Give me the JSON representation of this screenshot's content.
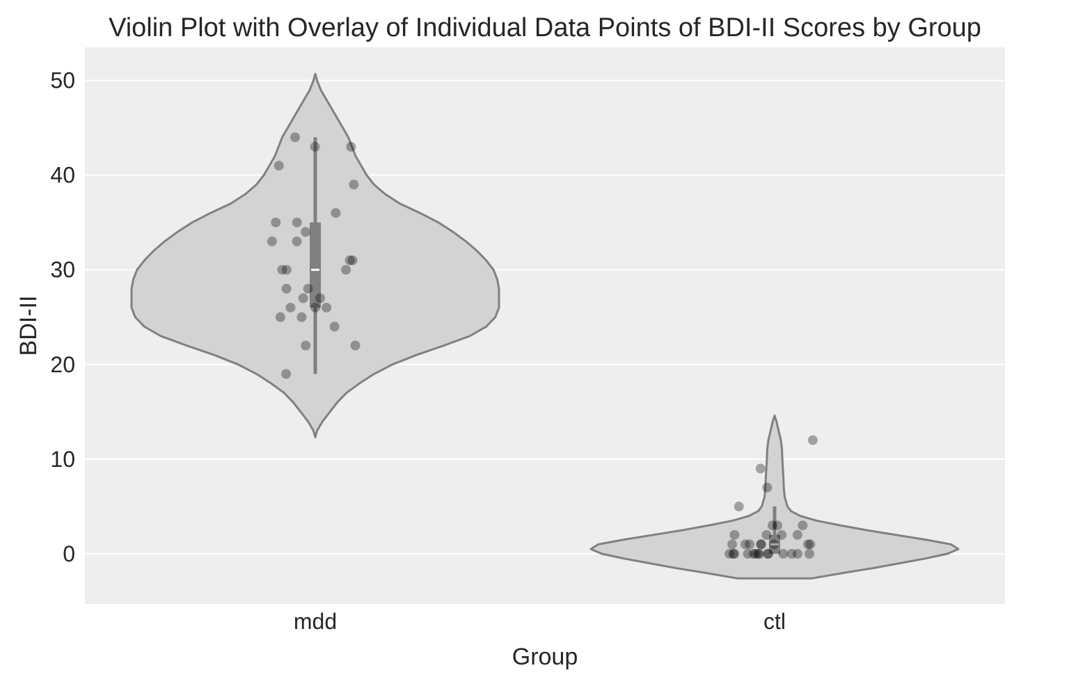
{
  "chart_data": {
    "type": "violin",
    "title": "Violin Plot with Overlay of Individual Data Points of BDI-II Scores by Group",
    "xlabel": "Group",
    "ylabel": "BDI-II",
    "ylim": [
      -5.3,
      53.5
    ],
    "yticks": [
      0,
      10,
      20,
      30,
      40,
      50
    ],
    "grid": true,
    "categories": [
      "mdd",
      "ctl"
    ],
    "groups": [
      {
        "name": "mdd",
        "min": 19,
        "q1": 26,
        "median": 30,
        "q3": 35,
        "max": 44,
        "kde_range": [
          12.3,
          50.7
        ],
        "density": [
          [
            12.3,
            0.0
          ],
          [
            13,
            0.01
          ],
          [
            14,
            0.04
          ],
          [
            15,
            0.08
          ],
          [
            16,
            0.12
          ],
          [
            17,
            0.17
          ],
          [
            18,
            0.24
          ],
          [
            19,
            0.32
          ],
          [
            20,
            0.42
          ],
          [
            21,
            0.55
          ],
          [
            22,
            0.7
          ],
          [
            23,
            0.84
          ],
          [
            24,
            0.93
          ],
          [
            25,
            0.98
          ],
          [
            26,
            1.0
          ],
          [
            27,
            1.0
          ],
          [
            28,
            1.0
          ],
          [
            29,
            0.99
          ],
          [
            30,
            0.97
          ],
          [
            31,
            0.93
          ],
          [
            32,
            0.88
          ],
          [
            33,
            0.82
          ],
          [
            34,
            0.75
          ],
          [
            35,
            0.67
          ],
          [
            36,
            0.57
          ],
          [
            37,
            0.46
          ],
          [
            38,
            0.38
          ],
          [
            39,
            0.32
          ],
          [
            40,
            0.28
          ],
          [
            41,
            0.25
          ],
          [
            42,
            0.22
          ],
          [
            43,
            0.2
          ],
          [
            44,
            0.18
          ],
          [
            45,
            0.15
          ],
          [
            46,
            0.12
          ],
          [
            47,
            0.09
          ],
          [
            48,
            0.06
          ],
          [
            49,
            0.03
          ],
          [
            50,
            0.01
          ],
          [
            50.7,
            0.0
          ]
        ],
        "points": [
          43,
          39,
          35,
          34,
          31,
          30,
          27,
          26,
          26,
          26,
          25,
          22,
          22,
          19,
          43,
          44,
          41,
          36,
          35,
          33,
          33,
          31,
          30,
          30,
          28,
          28,
          27,
          25,
          24
        ]
      },
      {
        "name": "ctl",
        "min": 0,
        "q1": 0,
        "median": 1,
        "q3": 2,
        "max": 5,
        "kde_range": [
          -2.6,
          14.6
        ],
        "density": [
          [
            -2.6,
            0.2
          ],
          [
            -2,
            0.38
          ],
          [
            -1.5,
            0.54
          ],
          [
            -1,
            0.68
          ],
          [
            -0.5,
            0.82
          ],
          [
            0,
            0.94
          ],
          [
            0.5,
            1.0
          ],
          [
            1,
            0.96
          ],
          [
            1.5,
            0.82
          ],
          [
            2,
            0.66
          ],
          [
            2.5,
            0.5
          ],
          [
            3,
            0.36
          ],
          [
            3.5,
            0.23
          ],
          [
            4,
            0.14
          ],
          [
            4.5,
            0.09
          ],
          [
            5,
            0.07
          ],
          [
            6,
            0.055
          ],
          [
            7,
            0.05
          ],
          [
            8,
            0.048
          ],
          [
            9,
            0.045
          ],
          [
            10,
            0.042
          ],
          [
            11,
            0.04
          ],
          [
            12,
            0.034
          ],
          [
            13,
            0.022
          ],
          [
            14,
            0.01
          ],
          [
            14.6,
            0.0
          ]
        ],
        "points": [
          12,
          9,
          7,
          5,
          3,
          3,
          3,
          2,
          2,
          2,
          2,
          1,
          1,
          1,
          1,
          1,
          1,
          1,
          1,
          0,
          0,
          0,
          0,
          0,
          0,
          0,
          0,
          0,
          0,
          0,
          0,
          0,
          0
        ]
      }
    ],
    "colors": {
      "plot_background": "#eeeeee",
      "grid": "#ffffff",
      "violin_fill": "#d3d3d3",
      "violin_edge": "#808080",
      "box": "#808080",
      "median": "#ffffff",
      "points": "#000000"
    }
  }
}
